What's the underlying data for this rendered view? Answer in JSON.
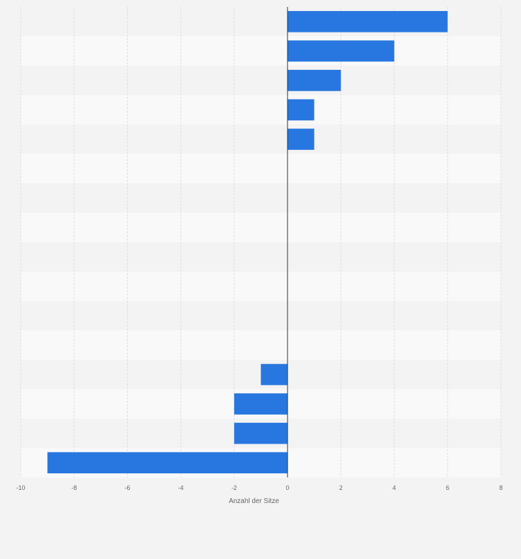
{
  "chart_data": {
    "type": "bar",
    "orientation": "horizontal",
    "categories": [
      "",
      "",
      "",
      "",
      "",
      "",
      "",
      "",
      "",
      "",
      "",
      "",
      "",
      "",
      "",
      ""
    ],
    "values": [
      6,
      4,
      2,
      1,
      1,
      0,
      0,
      0,
      0,
      0,
      0,
      0,
      -1,
      -2,
      -2,
      -9
    ],
    "xlabel": "Anzahl der Sitze",
    "ylabel": "",
    "xlim": [
      -10,
      8
    ],
    "x_ticks": [
      "-10",
      "-8",
      "-6",
      "-4",
      "-2",
      "0",
      "2",
      "4",
      "6",
      "8"
    ],
    "grid": true,
    "legend": "none",
    "colors": {
      "bar": "#2877e0",
      "row_light": "#f9f9f9",
      "row_dark": "#f3f3f3",
      "grid": "#dddddd",
      "zero_line": "#333333",
      "text": "#666666",
      "background": "#f3f3f3"
    }
  }
}
